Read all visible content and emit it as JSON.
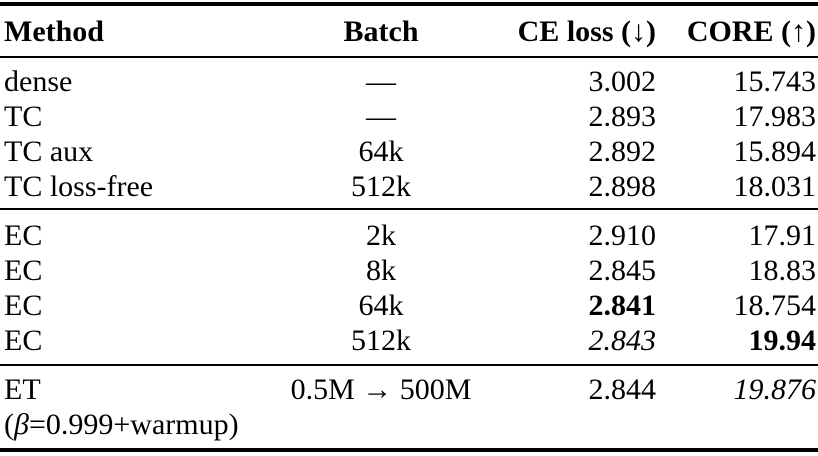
{
  "colors": {
    "text": "#000000",
    "background": "#ffffff",
    "rule": "#000000"
  },
  "table": {
    "header": {
      "method": "Method",
      "batch": "Batch",
      "ce_prefix": "CE loss (",
      "ce_arrow": "↓",
      "ce_suffix": ")",
      "core_prefix": "CORE (",
      "core_arrow": "↑",
      "core_suffix": ")"
    },
    "section1": [
      {
        "method": "dense",
        "batch": "—",
        "ce": "3.002",
        "core": "15.743"
      },
      {
        "method": "TC",
        "batch": "—",
        "ce": "2.893",
        "core": "17.983"
      },
      {
        "method": "TC aux",
        "batch": "64k",
        "ce": "2.892",
        "core": "15.894"
      },
      {
        "method": "TC loss-free",
        "batch": "512k",
        "ce": "2.898",
        "core": "18.031"
      }
    ],
    "section2": [
      {
        "method": "EC",
        "batch": "2k",
        "ce": "2.910",
        "core": "17.91"
      },
      {
        "method": "EC",
        "batch": "8k",
        "ce": "2.845",
        "core": "18.83"
      },
      {
        "method": "EC",
        "batch": "64k",
        "ce": "2.841",
        "core": "18.754"
      },
      {
        "method": "EC",
        "batch": "512k",
        "ce": "2.843",
        "core": "19.94"
      }
    ],
    "section3": {
      "method_line1": "ET",
      "note_open": "(",
      "note_beta": "β",
      "note_rest": "=0.999+warmup)",
      "batch": "0.5M → 500M",
      "ce": "2.844",
      "core": "19.876"
    }
  }
}
